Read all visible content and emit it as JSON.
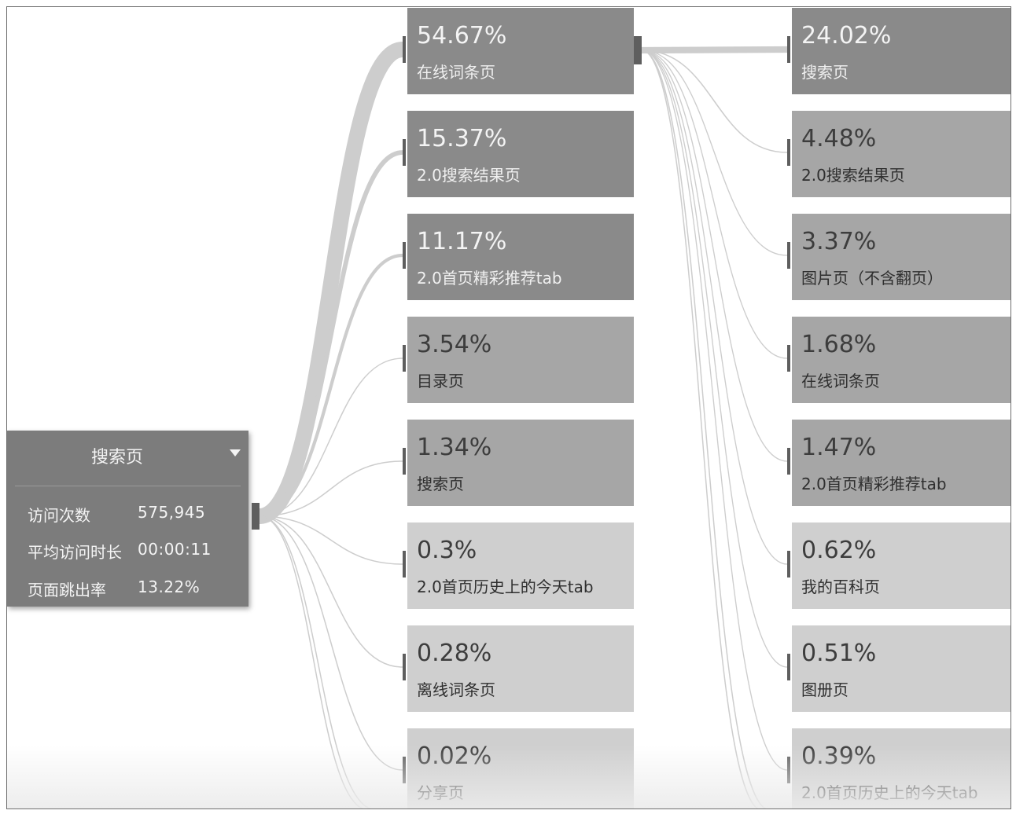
{
  "source": {
    "title": "搜索页",
    "stats": [
      {
        "label": "访问次数",
        "value": "575,945"
      },
      {
        "label": "平均访问时长",
        "value": "00:00:11"
      },
      {
        "label": "页面跳出率",
        "value": "13.22%"
      }
    ]
  },
  "level1": [
    {
      "pct": "54.67%",
      "label": "在线词条页",
      "value": 54.67
    },
    {
      "pct": "15.37%",
      "label": "2.0搜索结果页",
      "value": 15.37
    },
    {
      "pct": "11.17%",
      "label": "2.0首页精彩推荐tab",
      "value": 11.17
    },
    {
      "pct": "3.54%",
      "label": "目录页",
      "value": 3.54
    },
    {
      "pct": "1.34%",
      "label": "搜索页",
      "value": 1.34
    },
    {
      "pct": "0.3%",
      "label": "2.0首页历史上的今天tab",
      "value": 0.3
    },
    {
      "pct": "0.28%",
      "label": "离线词条页",
      "value": 0.28
    },
    {
      "pct": "0.02%",
      "label": "分享页",
      "value": 0.02
    }
  ],
  "level2": [
    {
      "pct": "24.02%",
      "label": "搜索页",
      "value": 24.02
    },
    {
      "pct": "4.48%",
      "label": "2.0搜索结果页",
      "value": 4.48
    },
    {
      "pct": "3.37%",
      "label": "图片页（不含翻页）",
      "value": 3.37
    },
    {
      "pct": "1.68%",
      "label": "在线词条页",
      "value": 1.68
    },
    {
      "pct": "1.47%",
      "label": "2.0首页精彩推荐tab",
      "value": 1.47
    },
    {
      "pct": "0.62%",
      "label": "我的百科页",
      "value": 0.62
    },
    {
      "pct": "0.51%",
      "label": "图册页",
      "value": 0.51
    },
    {
      "pct": "0.39%",
      "label": "2.0首页历史上的今天tab",
      "value": 0.39
    }
  ],
  "colors": {
    "card_dark": "#8a8a8a",
    "card_mid": "#a6a6a6",
    "card_light": "#cfcfcf",
    "flow": "#cdcdcd",
    "node_bar": "#5e5e5e"
  }
}
